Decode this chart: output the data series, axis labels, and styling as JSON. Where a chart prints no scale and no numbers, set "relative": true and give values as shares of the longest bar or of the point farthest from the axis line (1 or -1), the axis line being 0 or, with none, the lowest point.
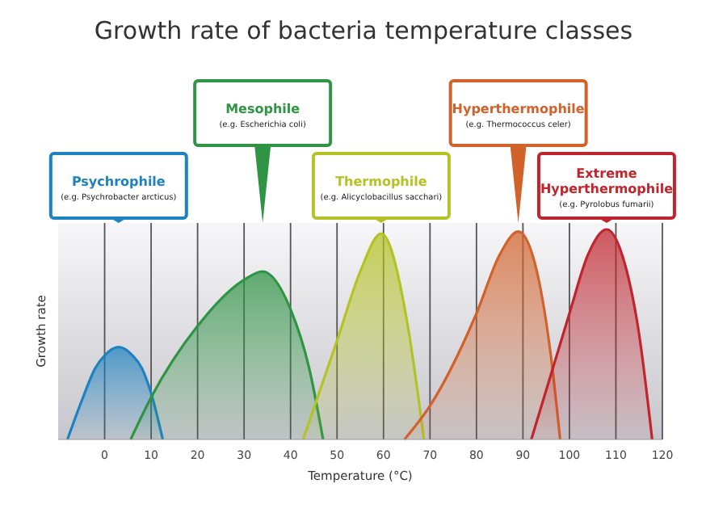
{
  "chart_data": {
    "type": "area",
    "title": "Growth rate of bacteria temperature classes",
    "xlabel": "Temperature (°C)",
    "ylabel": "Growth rate",
    "relative": true,
    "grid": "x",
    "xlim": [
      -10,
      120
    ],
    "xticks": [
      0,
      10,
      20,
      30,
      40,
      50,
      60,
      70,
      80,
      90,
      100,
      110,
      120
    ],
    "series": [
      {
        "name": "Psychrophile",
        "color": "#1f82c0",
        "x": [
          -8,
          -5,
          -2,
          0,
          3,
          6,
          8,
          10,
          12.5
        ],
        "values": [
          0,
          0.18,
          0.34,
          0.4,
          0.44,
          0.4,
          0.34,
          0.22,
          0
        ]
      },
      {
        "name": "Mesophile",
        "color": "#2f9444",
        "x": [
          5.6,
          10,
          20,
          30,
          34,
          40,
          44,
          47
        ],
        "values": [
          0,
          0.2,
          0.54,
          0.76,
          0.8,
          0.62,
          0.34,
          0
        ]
      },
      {
        "name": "Thermophile",
        "color": "#b3c224",
        "x": [
          42.7,
          50,
          55,
          59.5,
          65,
          67.5,
          68.7
        ],
        "values": [
          0,
          0.47,
          0.8,
          0.98,
          0.57,
          0.2,
          0
        ]
      },
      {
        "name": "Hyperthermophile",
        "color": "#d2622c",
        "x": [
          64.5,
          70,
          80,
          85,
          89,
          93,
          96,
          98
        ],
        "values": [
          0,
          0.16,
          0.6,
          0.88,
          0.99,
          0.8,
          0.4,
          0
        ]
      },
      {
        "name": "Extreme Hyperthermophile",
        "color": "#c0242c",
        "x": [
          91.8,
          100,
          104,
          108,
          112,
          115,
          117.8
        ],
        "values": [
          0,
          0.6,
          0.88,
          1,
          0.83,
          0.5,
          0
        ]
      }
    ],
    "annotations": [
      "(e.g. Psychrobacter arcticus)",
      "(e.g. Escherichia coli)",
      "(e.g. Alicyclobacillus sacchari)",
      "(e.g. Thermococcus celer)",
      "(e.g. Pyrolobus fumarii)"
    ]
  }
}
